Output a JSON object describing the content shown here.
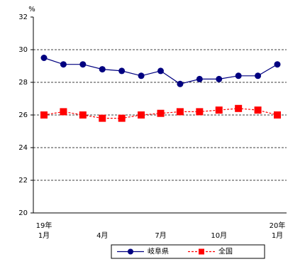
{
  "chart_data": {
    "type": "line",
    "y_unit": "%",
    "categories": [
      "1月",
      null,
      null,
      "4月",
      null,
      null,
      "7月",
      null,
      null,
      "10月",
      null,
      null,
      "1月"
    ],
    "x_year_labels": [
      "19年",
      null,
      null,
      null,
      null,
      null,
      null,
      null,
      null,
      null,
      null,
      null,
      "20年"
    ],
    "series": [
      {
        "name": "岐阜県",
        "color": "#000080",
        "marker": "circle",
        "dashed": false,
        "values": [
          29.5,
          29.1,
          29.1,
          28.8,
          28.7,
          28.4,
          28.7,
          27.9,
          28.2,
          28.2,
          28.4,
          28.4,
          29.1
        ]
      },
      {
        "name": "全国",
        "color": "#ff0000",
        "marker": "square",
        "dashed": true,
        "values": [
          26.0,
          26.2,
          26.0,
          25.8,
          25.8,
          26.0,
          26.1,
          26.2,
          26.2,
          26.3,
          26.4,
          26.3,
          26.0
        ]
      }
    ],
    "ylim": [
      20,
      32
    ],
    "yticks": [
      20,
      22,
      24,
      26,
      28,
      30,
      32
    ],
    "grid": true
  }
}
